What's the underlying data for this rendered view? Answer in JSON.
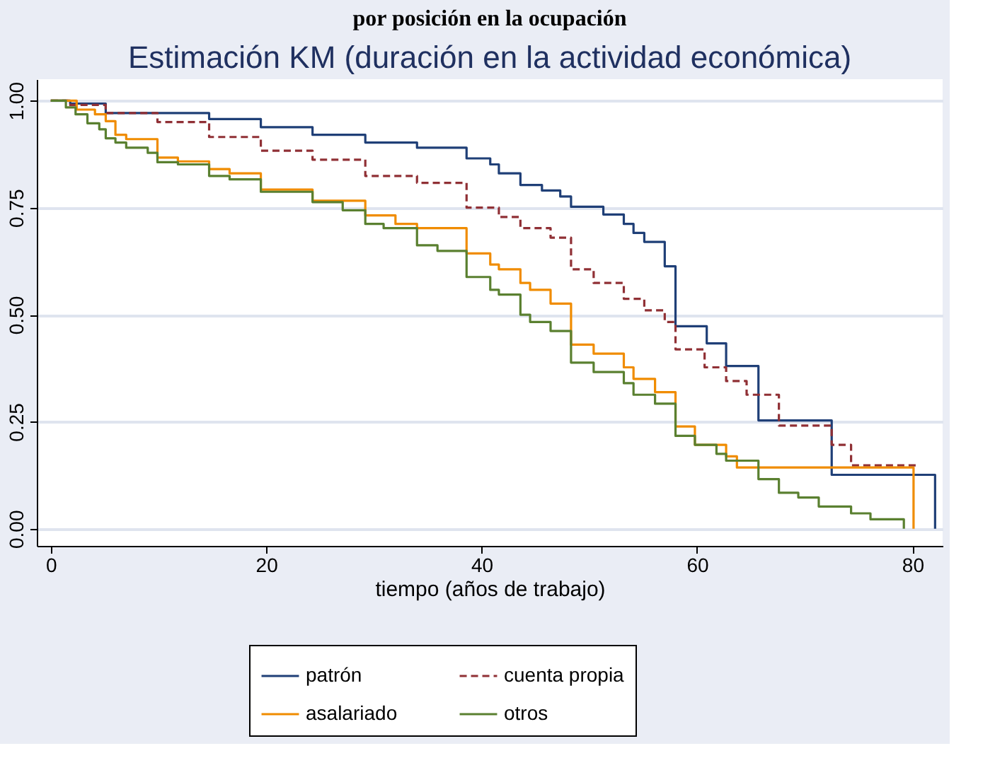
{
  "chart_data": {
    "type": "step",
    "title": "Estimación KM (duración en la actividad económica)",
    "xlabel": "tiempo (años de trabajo)",
    "annotations": [
      "por posición en la ocupación"
    ],
    "xlim": [
      -1.3,
      82.8
    ],
    "xticks": [
      0,
      20,
      40,
      60,
      80
    ],
    "ylim": [
      -0.04,
      1.05
    ],
    "yticks": [
      {
        "value": 0,
        "label": "0.00"
      },
      {
        "value": 0.25,
        "label": "0.25"
      },
      {
        "value": 0.5,
        "label": "0.50"
      },
      {
        "value": 0.75,
        "label": "0.75"
      },
      {
        "value": 1,
        "label": "1.00"
      }
    ],
    "grid": "y",
    "legend": "bottom",
    "series": [
      {
        "name": "patrón",
        "color": "#1f3f77",
        "line_style": "solid",
        "x": [
          0,
          1.8,
          5.1,
          14.7,
          19.5,
          24.3,
          29.2,
          34,
          38.6,
          40.8,
          41.6,
          43.6,
          45.6,
          47.3,
          48.3,
          51.3,
          53.2,
          54.1,
          55.1,
          57,
          58,
          60.9,
          62.7,
          65.7,
          72.5,
          82.1
        ],
        "values": [
          1.0,
          0.993,
          0.971,
          0.957,
          0.938,
          0.92,
          0.902,
          0.89,
          0.865,
          0.851,
          0.83,
          0.803,
          0.79,
          0.776,
          0.752,
          0.734,
          0.712,
          0.691,
          0.67,
          0.613,
          0.473,
          0.433,
          0.38,
          0.253,
          0.126,
          0
        ]
      },
      {
        "name": "cuenta propia",
        "color": "#903035",
        "line_style": "dashed",
        "x": [
          0,
          1.6,
          5.1,
          9.9,
          14.7,
          19.5,
          24.3,
          29.2,
          34,
          38.6,
          41.6,
          43.6,
          46.4,
          48.3,
          50.4,
          53.2,
          55.1,
          57,
          58,
          60.7,
          62.7,
          64.6,
          67.6,
          72.5,
          74.3,
          80.3
        ],
        "values": [
          1.0,
          0.99,
          0.971,
          0.95,
          0.915,
          0.883,
          0.862,
          0.824,
          0.808,
          0.75,
          0.728,
          0.702,
          0.68,
          0.606,
          0.574,
          0.537,
          0.51,
          0.483,
          0.419,
          0.377,
          0.345,
          0.313,
          0.241,
          0.196,
          0.148,
          0.148
        ]
      },
      {
        "name": "asalariado",
        "color": "#f08c00",
        "line_style": "solid",
        "x": [
          0,
          2.4,
          4.1,
          5.1,
          6,
          7,
          9.9,
          11.8,
          14.7,
          16.6,
          19.5,
          24.3,
          29.2,
          32,
          34,
          38.6,
          40.8,
          41.6,
          43.6,
          44.5,
          46.4,
          48.3,
          50.4,
          53.2,
          54.1,
          56.1,
          58,
          59.8,
          62.7,
          63.7,
          80.1,
          80.1
        ],
        "values": [
          1.0,
          0.979,
          0.968,
          0.952,
          0.92,
          0.91,
          0.867,
          0.858,
          0.84,
          0.83,
          0.792,
          0.766,
          0.732,
          0.712,
          0.702,
          0.643,
          0.617,
          0.606,
          0.574,
          0.558,
          0.526,
          0.43,
          0.409,
          0.377,
          0.35,
          0.319,
          0.239,
          0.196,
          0.169,
          0.143,
          0.143,
          0
        ]
      },
      {
        "name": "otros",
        "color": "#5a8030",
        "line_style": "solid",
        "x": [
          0,
          1.4,
          2.3,
          3.4,
          4.5,
          5.1,
          6,
          7,
          9,
          9.9,
          11.8,
          14.7,
          16.6,
          19.5,
          24.3,
          27.1,
          29.2,
          30.9,
          34,
          35.9,
          38.6,
          40.8,
          41.6,
          43.6,
          44.5,
          46.4,
          48.3,
          50.4,
          53.2,
          54.1,
          56.1,
          58,
          59.8,
          61.8,
          62.7,
          65.7,
          67.6,
          69.4,
          71.3,
          74.3,
          76.1,
          79.2,
          79.2
        ],
        "values": [
          1.0,
          0.984,
          0.968,
          0.947,
          0.933,
          0.912,
          0.902,
          0.89,
          0.878,
          0.856,
          0.851,
          0.824,
          0.816,
          0.787,
          0.763,
          0.744,
          0.712,
          0.702,
          0.662,
          0.649,
          0.588,
          0.558,
          0.547,
          0.5,
          0.483,
          0.462,
          0.388,
          0.366,
          0.34,
          0.313,
          0.292,
          0.217,
          0.196,
          0.175,
          0.159,
          0.116,
          0.084,
          0.073,
          0.052,
          0.036,
          0.022,
          0.022,
          0
        ]
      }
    ]
  }
}
